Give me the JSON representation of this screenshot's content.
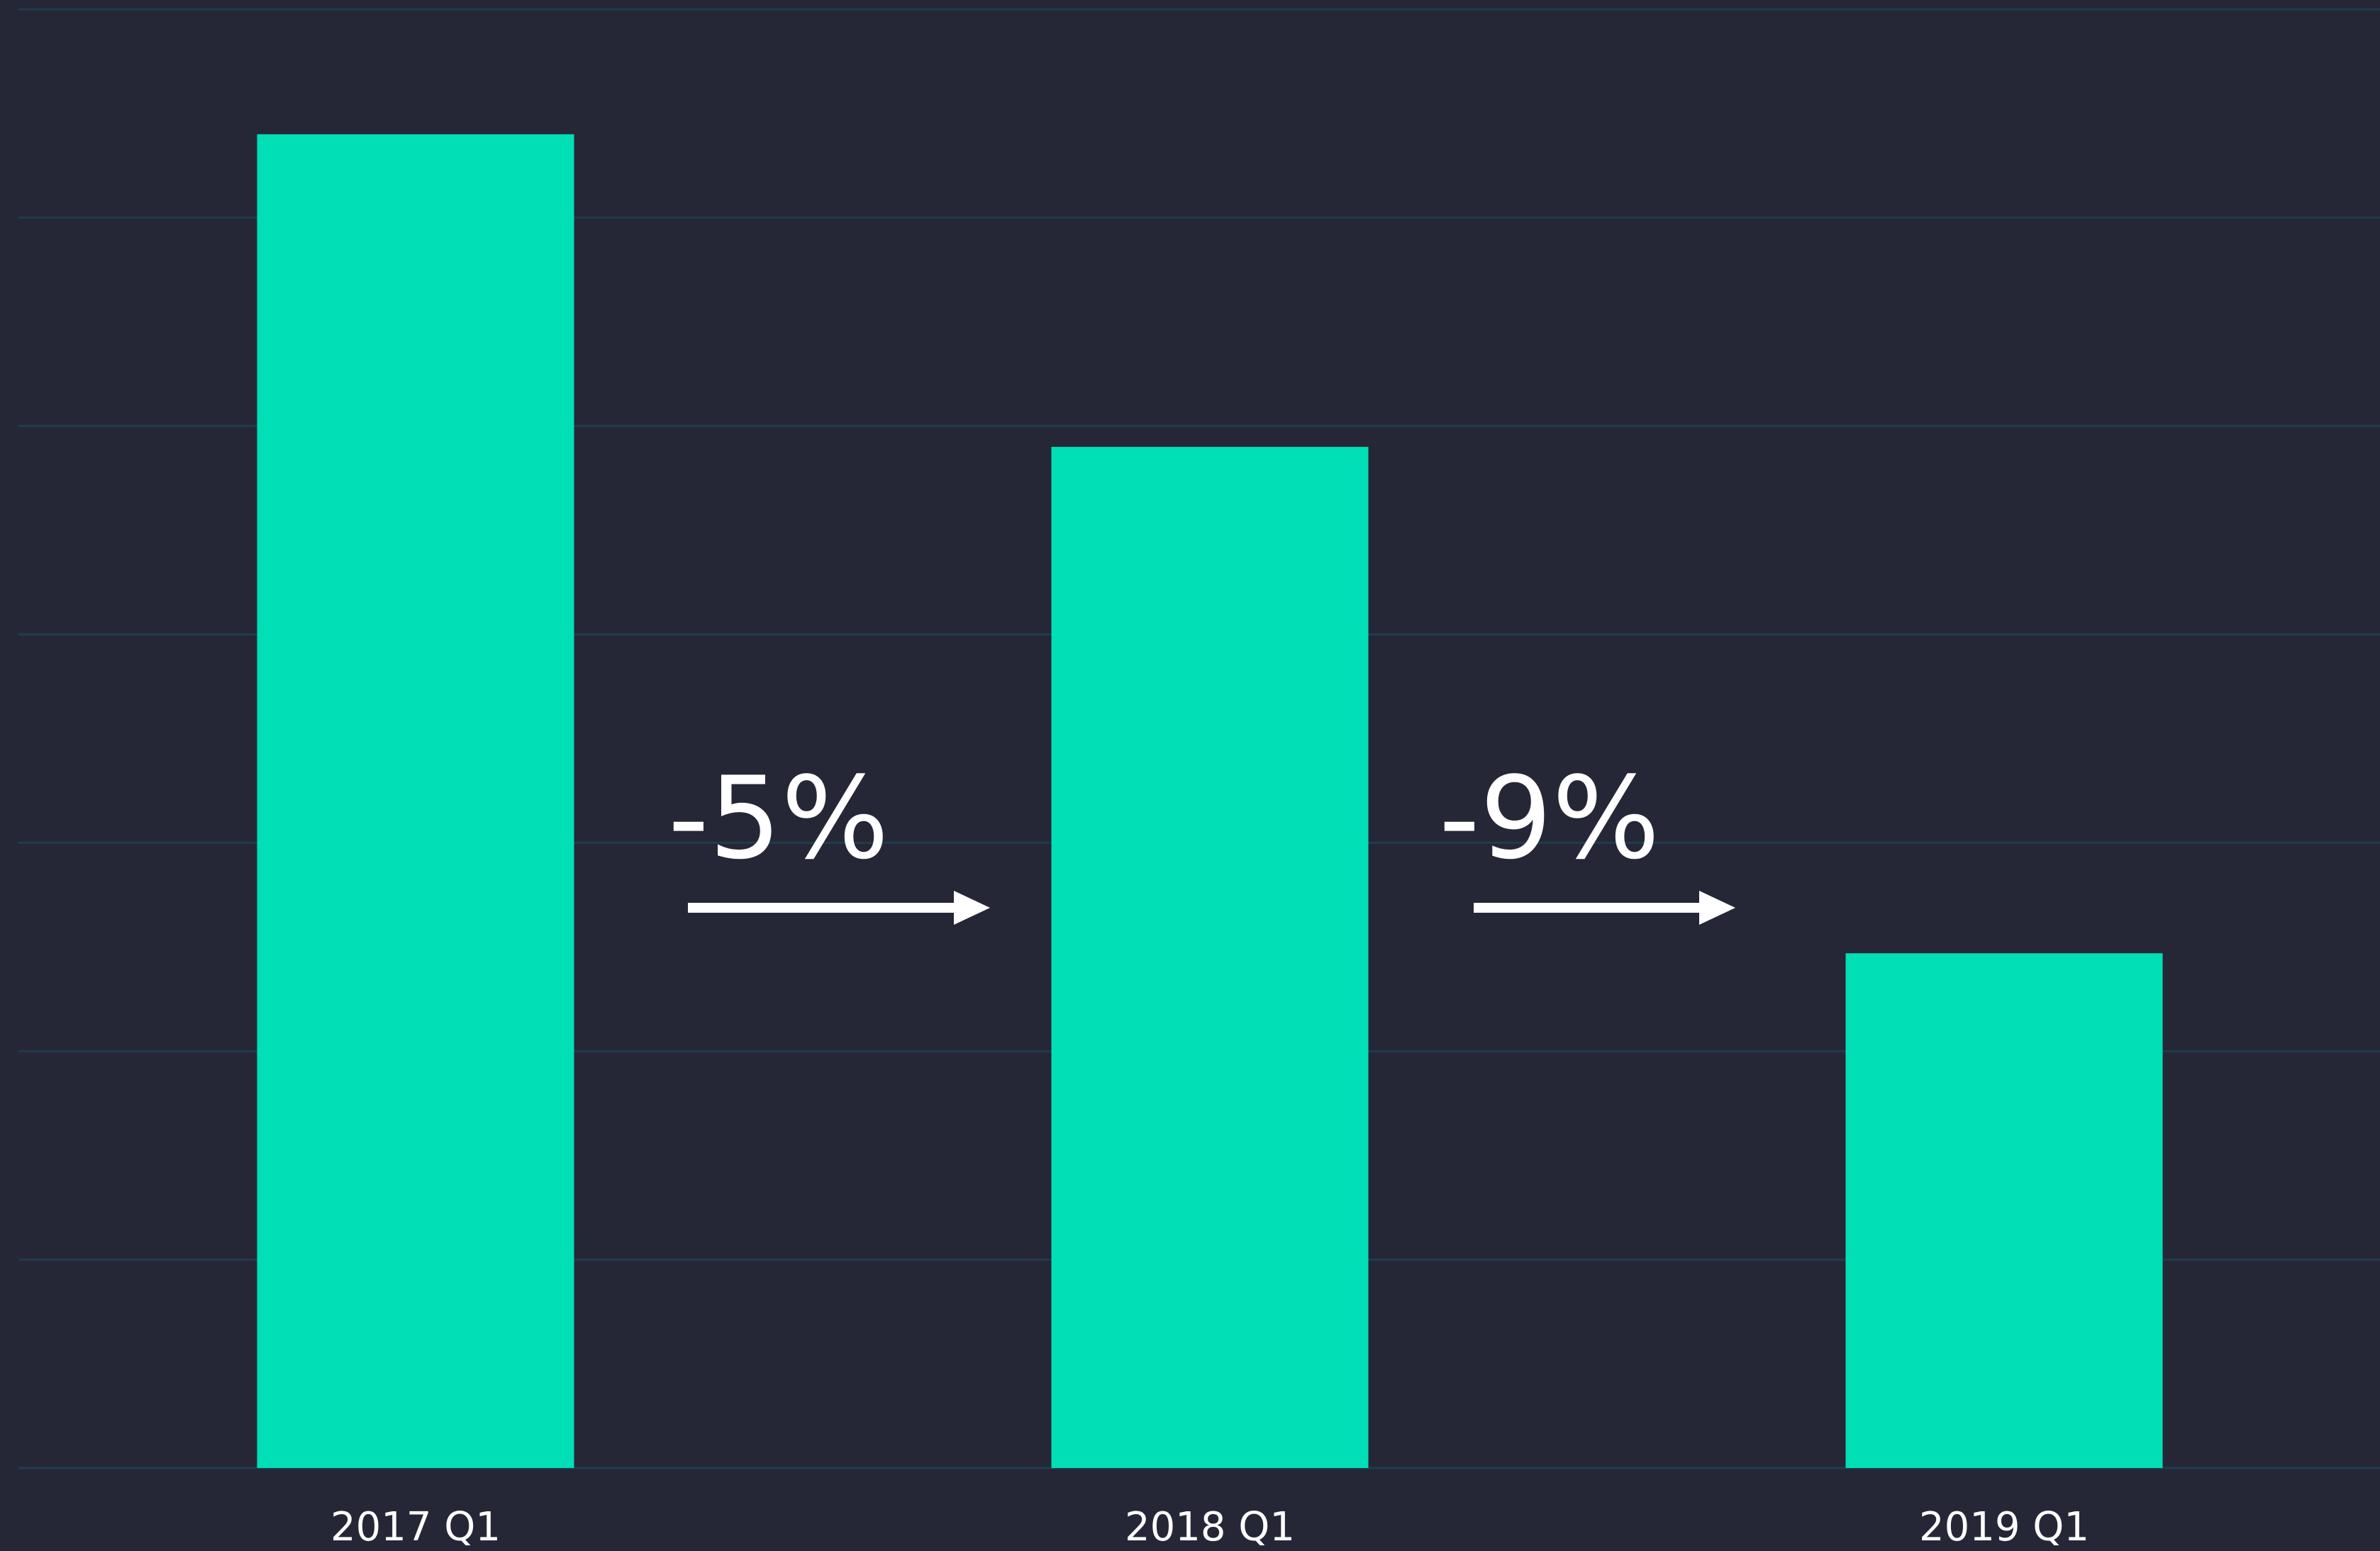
{
  "chart_data": {
    "type": "bar",
    "categories": [
      "2017 Q1",
      "2018 Q1",
      "2019 Q1"
    ],
    "values": [
      6.4,
      4.9,
      2.47
    ],
    "color": "#00dfb6",
    "ylim": [
      0,
      7
    ],
    "yticks": [
      0,
      1,
      2,
      3,
      4,
      5,
      6,
      7
    ],
    "grid": true,
    "annotations": [
      "-5%",
      "-9%"
    ]
  }
}
